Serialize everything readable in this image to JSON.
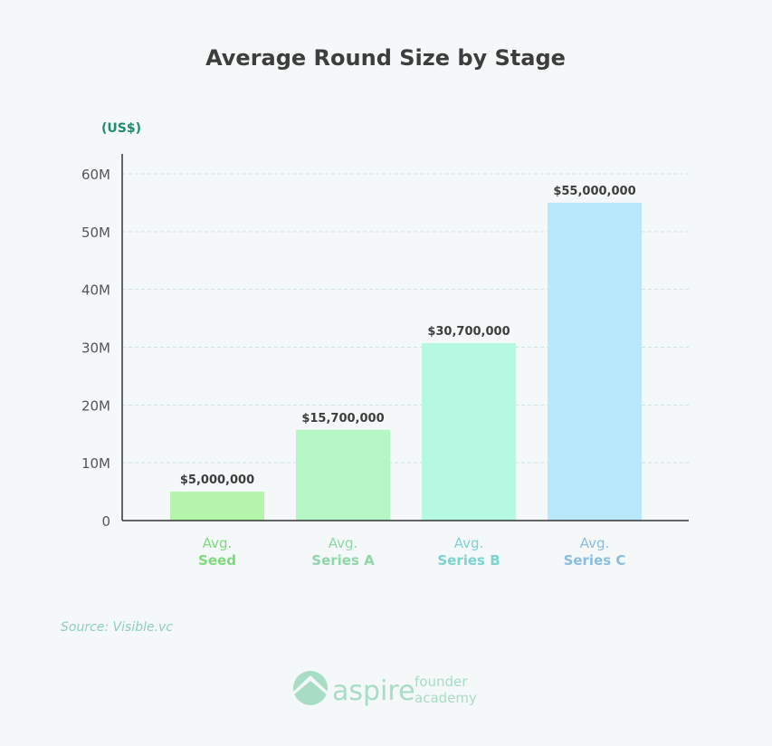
{
  "chart_data": {
    "type": "bar",
    "title": "Average Round Size by Stage",
    "ylabel": "(US$)",
    "xlabel": "",
    "ylim": [
      0,
      60000000
    ],
    "yticks": [
      0,
      10000000,
      20000000,
      30000000,
      40000000,
      50000000,
      60000000
    ],
    "ytick_labels": [
      "0",
      "10M",
      "20M",
      "30M",
      "40M",
      "50M",
      "60M"
    ],
    "grid": true,
    "categories": [
      "Avg. Seed",
      "Avg. Series A",
      "Avg. Series B",
      "Avg. Series C"
    ],
    "category_top": [
      "Avg.",
      "Avg.",
      "Avg.",
      "Avg."
    ],
    "category_bottom": [
      "Seed",
      "Series A",
      "Series B",
      "Series C"
    ],
    "values": [
      5000000,
      15700000,
      30700000,
      55000000
    ],
    "value_labels": [
      "$5,000,000",
      "$15,700,000",
      "$30,700,000",
      "$55,000,000"
    ],
    "bar_colors": [
      "#b5f5ab",
      "#b5f7c4",
      "#b5f9e2",
      "#b9e7fc"
    ],
    "label_colors": [
      "#7ddb7d",
      "#8fd6a9",
      "#7dd3cf",
      "#8bbddf"
    ]
  },
  "source": "Source: Visible.vc",
  "logo": {
    "name": "aspire",
    "sub1": "founder",
    "sub2": "academy"
  },
  "colors": {
    "title": "#3d3d3d",
    "ylabel": "#1e8a6e",
    "axis": "#333333",
    "grid": "#cde3e3",
    "logo": "#a8dcc4"
  }
}
